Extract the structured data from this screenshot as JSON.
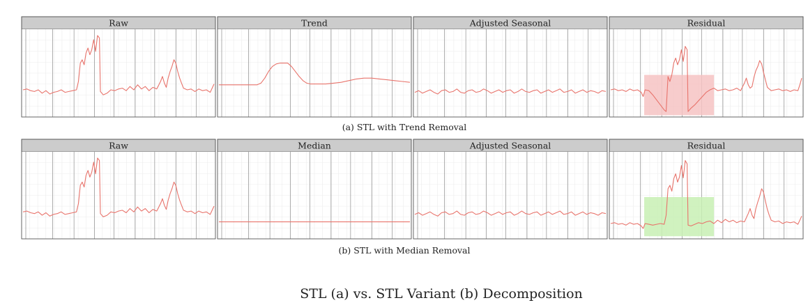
{
  "figure": {
    "title": "STL (a) vs. STL Variant (b) Decomposition",
    "line_color": "#e8736b",
    "strip_color": "#cccccc",
    "frame_color": "#555555",
    "major_grid_color": "#8c8c8c",
    "minor_grid_color": "#ececec",
    "background_color": "#ffffff"
  },
  "chart_data": [
    {
      "caption": "(a) STL with Trend Removal",
      "panels": [
        {
          "type": "line",
          "strip": "Raw",
          "series_key": "raw"
        },
        {
          "type": "line",
          "strip": "Trend",
          "series_key": "trend"
        },
        {
          "type": "line",
          "strip": "Adjusted Seasonal",
          "series_key": "seasonal"
        },
        {
          "type": "line",
          "strip": "Residual",
          "series_key": "residual_a",
          "highlight": {
            "color": "#f6c3c3",
            "x_range": [
              0.18,
              0.54
            ],
            "y_range": [
              0.02,
              0.48
            ]
          }
        }
      ]
    },
    {
      "caption": "(b) STL with Median Removal",
      "panels": [
        {
          "type": "line",
          "strip": "Raw",
          "series_key": "raw"
        },
        {
          "type": "line",
          "strip": "Median",
          "series_key": "median"
        },
        {
          "type": "line",
          "strip": "Adjusted Seasonal",
          "series_key": "seasonal"
        },
        {
          "type": "line",
          "strip": "Residual",
          "series_key": "residual_b",
          "highlight": {
            "color": "#c8f0b4",
            "x_range": [
              0.18,
              0.54
            ],
            "y_range": [
              0.03,
              0.48
            ]
          }
        }
      ]
    }
  ],
  "series": {
    "raw": [
      [
        0,
        0.3
      ],
      [
        0.02,
        0.31
      ],
      [
        0.04,
        0.29
      ],
      [
        0.06,
        0.28
      ],
      [
        0.08,
        0.3
      ],
      [
        0.1,
        0.26
      ],
      [
        0.12,
        0.29
      ],
      [
        0.14,
        0.25
      ],
      [
        0.16,
        0.27
      ],
      [
        0.18,
        0.28
      ],
      [
        0.2,
        0.3
      ],
      [
        0.22,
        0.27
      ],
      [
        0.24,
        0.28
      ],
      [
        0.26,
        0.29
      ],
      [
        0.28,
        0.3
      ],
      [
        0.29,
        0.4
      ],
      [
        0.3,
        0.62
      ],
      [
        0.31,
        0.66
      ],
      [
        0.32,
        0.6
      ],
      [
        0.33,
        0.74
      ],
      [
        0.34,
        0.8
      ],
      [
        0.35,
        0.72
      ],
      [
        0.36,
        0.78
      ],
      [
        0.37,
        0.9
      ],
      [
        0.38,
        0.76
      ],
      [
        0.39,
        0.95
      ],
      [
        0.4,
        0.92
      ],
      [
        0.405,
        0.28
      ],
      [
        0.42,
        0.24
      ],
      [
        0.44,
        0.26
      ],
      [
        0.46,
        0.3
      ],
      [
        0.48,
        0.29
      ],
      [
        0.5,
        0.31
      ],
      [
        0.52,
        0.32
      ],
      [
        0.54,
        0.29
      ],
      [
        0.56,
        0.34
      ],
      [
        0.58,
        0.3
      ],
      [
        0.6,
        0.36
      ],
      [
        0.62,
        0.31
      ],
      [
        0.64,
        0.34
      ],
      [
        0.66,
        0.29
      ],
      [
        0.68,
        0.33
      ],
      [
        0.7,
        0.31
      ],
      [
        0.72,
        0.4
      ],
      [
        0.73,
        0.46
      ],
      [
        0.74,
        0.38
      ],
      [
        0.75,
        0.33
      ],
      [
        0.76,
        0.44
      ],
      [
        0.77,
        0.52
      ],
      [
        0.78,
        0.58
      ],
      [
        0.79,
        0.66
      ],
      [
        0.8,
        0.62
      ],
      [
        0.81,
        0.52
      ],
      [
        0.82,
        0.44
      ],
      [
        0.83,
        0.38
      ],
      [
        0.84,
        0.32
      ],
      [
        0.86,
        0.3
      ],
      [
        0.88,
        0.31
      ],
      [
        0.9,
        0.28
      ],
      [
        0.92,
        0.31
      ],
      [
        0.94,
        0.29
      ],
      [
        0.96,
        0.3
      ],
      [
        0.98,
        0.27
      ],
      [
        0.99,
        0.32
      ],
      [
        1,
        0.37
      ]
    ],
    "trend": [
      [
        0,
        0.36
      ],
      [
        0.04,
        0.36
      ],
      [
        0.08,
        0.36
      ],
      [
        0.12,
        0.36
      ],
      [
        0.16,
        0.36
      ],
      [
        0.2,
        0.36
      ],
      [
        0.22,
        0.38
      ],
      [
        0.24,
        0.44
      ],
      [
        0.26,
        0.52
      ],
      [
        0.28,
        0.58
      ],
      [
        0.3,
        0.61
      ],
      [
        0.32,
        0.62
      ],
      [
        0.34,
        0.62
      ],
      [
        0.36,
        0.62
      ],
      [
        0.38,
        0.58
      ],
      [
        0.4,
        0.52
      ],
      [
        0.42,
        0.46
      ],
      [
        0.44,
        0.41
      ],
      [
        0.46,
        0.38
      ],
      [
        0.48,
        0.37
      ],
      [
        0.52,
        0.37
      ],
      [
        0.56,
        0.37
      ],
      [
        0.6,
        0.38
      ],
      [
        0.64,
        0.39
      ],
      [
        0.68,
        0.41
      ],
      [
        0.72,
        0.43
      ],
      [
        0.76,
        0.44
      ],
      [
        0.8,
        0.44
      ],
      [
        0.84,
        0.43
      ],
      [
        0.88,
        0.42
      ],
      [
        0.92,
        0.41
      ],
      [
        0.96,
        0.4
      ],
      [
        1,
        0.39
      ]
    ],
    "seasonal": [
      [
        0,
        0.27
      ],
      [
        0.02,
        0.29
      ],
      [
        0.04,
        0.26
      ],
      [
        0.06,
        0.28
      ],
      [
        0.08,
        0.3
      ],
      [
        0.1,
        0.27
      ],
      [
        0.12,
        0.25
      ],
      [
        0.14,
        0.29
      ],
      [
        0.16,
        0.3
      ],
      [
        0.18,
        0.27
      ],
      [
        0.2,
        0.28
      ],
      [
        0.22,
        0.31
      ],
      [
        0.24,
        0.27
      ],
      [
        0.26,
        0.26
      ],
      [
        0.28,
        0.29
      ],
      [
        0.3,
        0.3
      ],
      [
        0.32,
        0.27
      ],
      [
        0.34,
        0.28
      ],
      [
        0.36,
        0.31
      ],
      [
        0.38,
        0.29
      ],
      [
        0.4,
        0.26
      ],
      [
        0.42,
        0.28
      ],
      [
        0.44,
        0.3
      ],
      [
        0.46,
        0.27
      ],
      [
        0.48,
        0.29
      ],
      [
        0.5,
        0.3
      ],
      [
        0.52,
        0.26
      ],
      [
        0.54,
        0.28
      ],
      [
        0.56,
        0.31
      ],
      [
        0.58,
        0.28
      ],
      [
        0.6,
        0.27
      ],
      [
        0.62,
        0.29
      ],
      [
        0.64,
        0.3
      ],
      [
        0.66,
        0.26
      ],
      [
        0.68,
        0.28
      ],
      [
        0.7,
        0.3
      ],
      [
        0.72,
        0.27
      ],
      [
        0.74,
        0.29
      ],
      [
        0.76,
        0.31
      ],
      [
        0.78,
        0.27
      ],
      [
        0.8,
        0.28
      ],
      [
        0.82,
        0.3
      ],
      [
        0.84,
        0.26
      ],
      [
        0.86,
        0.28
      ],
      [
        0.88,
        0.3
      ],
      [
        0.9,
        0.27
      ],
      [
        0.92,
        0.29
      ],
      [
        0.94,
        0.28
      ],
      [
        0.96,
        0.26
      ],
      [
        0.98,
        0.29
      ],
      [
        1,
        0.28
      ]
    ],
    "residual_a": [
      [
        0,
        0.3
      ],
      [
        0.02,
        0.31
      ],
      [
        0.04,
        0.29
      ],
      [
        0.06,
        0.3
      ],
      [
        0.08,
        0.28
      ],
      [
        0.1,
        0.31
      ],
      [
        0.12,
        0.29
      ],
      [
        0.14,
        0.3
      ],
      [
        0.16,
        0.27
      ],
      [
        0.17,
        0.22
      ],
      [
        0.18,
        0.3
      ],
      [
        0.2,
        0.29
      ],
      [
        0.22,
        0.24
      ],
      [
        0.24,
        0.18
      ],
      [
        0.26,
        0.12
      ],
      [
        0.28,
        0.06
      ],
      [
        0.29,
        0.04
      ],
      [
        0.3,
        0.46
      ],
      [
        0.31,
        0.4
      ],
      [
        0.32,
        0.48
      ],
      [
        0.33,
        0.62
      ],
      [
        0.34,
        0.68
      ],
      [
        0.35,
        0.6
      ],
      [
        0.36,
        0.66
      ],
      [
        0.37,
        0.78
      ],
      [
        0.38,
        0.64
      ],
      [
        0.39,
        0.82
      ],
      [
        0.4,
        0.78
      ],
      [
        0.405,
        0.04
      ],
      [
        0.42,
        0.08
      ],
      [
        0.44,
        0.12
      ],
      [
        0.46,
        0.17
      ],
      [
        0.48,
        0.22
      ],
      [
        0.5,
        0.27
      ],
      [
        0.52,
        0.3
      ],
      [
        0.54,
        0.32
      ],
      [
        0.56,
        0.29
      ],
      [
        0.58,
        0.3
      ],
      [
        0.6,
        0.31
      ],
      [
        0.62,
        0.29
      ],
      [
        0.64,
        0.3
      ],
      [
        0.66,
        0.32
      ],
      [
        0.68,
        0.29
      ],
      [
        0.7,
        0.38
      ],
      [
        0.71,
        0.44
      ],
      [
        0.72,
        0.36
      ],
      [
        0.73,
        0.32
      ],
      [
        0.74,
        0.34
      ],
      [
        0.75,
        0.45
      ],
      [
        0.76,
        0.53
      ],
      [
        0.77,
        0.58
      ],
      [
        0.78,
        0.65
      ],
      [
        0.79,
        0.61
      ],
      [
        0.8,
        0.51
      ],
      [
        0.81,
        0.42
      ],
      [
        0.82,
        0.33
      ],
      [
        0.84,
        0.29
      ],
      [
        0.86,
        0.3
      ],
      [
        0.88,
        0.31
      ],
      [
        0.9,
        0.29
      ],
      [
        0.92,
        0.3
      ],
      [
        0.94,
        0.28
      ],
      [
        0.96,
        0.3
      ],
      [
        0.98,
        0.29
      ],
      [
        0.99,
        0.36
      ],
      [
        1,
        0.44
      ]
    ],
    "median": [
      [
        0,
        0.18
      ],
      [
        0.25,
        0.18
      ],
      [
        0.5,
        0.18
      ],
      [
        0.75,
        0.18
      ],
      [
        1,
        0.18
      ]
    ],
    "residual_b": [
      [
        0,
        0.16
      ],
      [
        0.02,
        0.17
      ],
      [
        0.04,
        0.15
      ],
      [
        0.06,
        0.16
      ],
      [
        0.08,
        0.14
      ],
      [
        0.1,
        0.17
      ],
      [
        0.12,
        0.15
      ],
      [
        0.14,
        0.16
      ],
      [
        0.16,
        0.13
      ],
      [
        0.17,
        0.1
      ],
      [
        0.18,
        0.16
      ],
      [
        0.2,
        0.15
      ],
      [
        0.22,
        0.14
      ],
      [
        0.24,
        0.15
      ],
      [
        0.26,
        0.16
      ],
      [
        0.28,
        0.15
      ],
      [
        0.29,
        0.26
      ],
      [
        0.3,
        0.58
      ],
      [
        0.31,
        0.62
      ],
      [
        0.32,
        0.55
      ],
      [
        0.33,
        0.7
      ],
      [
        0.34,
        0.76
      ],
      [
        0.35,
        0.66
      ],
      [
        0.36,
        0.72
      ],
      [
        0.37,
        0.86
      ],
      [
        0.38,
        0.71
      ],
      [
        0.39,
        0.92
      ],
      [
        0.4,
        0.88
      ],
      [
        0.405,
        0.14
      ],
      [
        0.42,
        0.13
      ],
      [
        0.44,
        0.15
      ],
      [
        0.46,
        0.17
      ],
      [
        0.48,
        0.16
      ],
      [
        0.5,
        0.18
      ],
      [
        0.52,
        0.19
      ],
      [
        0.54,
        0.16
      ],
      [
        0.56,
        0.2
      ],
      [
        0.58,
        0.17
      ],
      [
        0.6,
        0.21
      ],
      [
        0.62,
        0.18
      ],
      [
        0.64,
        0.2
      ],
      [
        0.66,
        0.17
      ],
      [
        0.68,
        0.19
      ],
      [
        0.7,
        0.18
      ],
      [
        0.72,
        0.28
      ],
      [
        0.73,
        0.34
      ],
      [
        0.74,
        0.26
      ],
      [
        0.75,
        0.22
      ],
      [
        0.76,
        0.34
      ],
      [
        0.77,
        0.42
      ],
      [
        0.78,
        0.49
      ],
      [
        0.79,
        0.58
      ],
      [
        0.8,
        0.54
      ],
      [
        0.81,
        0.43
      ],
      [
        0.82,
        0.33
      ],
      [
        0.83,
        0.26
      ],
      [
        0.84,
        0.2
      ],
      [
        0.86,
        0.18
      ],
      [
        0.88,
        0.19
      ],
      [
        0.9,
        0.16
      ],
      [
        0.92,
        0.18
      ],
      [
        0.94,
        0.17
      ],
      [
        0.96,
        0.18
      ],
      [
        0.98,
        0.15
      ],
      [
        0.99,
        0.2
      ],
      [
        1,
        0.25
      ]
    ]
  }
}
